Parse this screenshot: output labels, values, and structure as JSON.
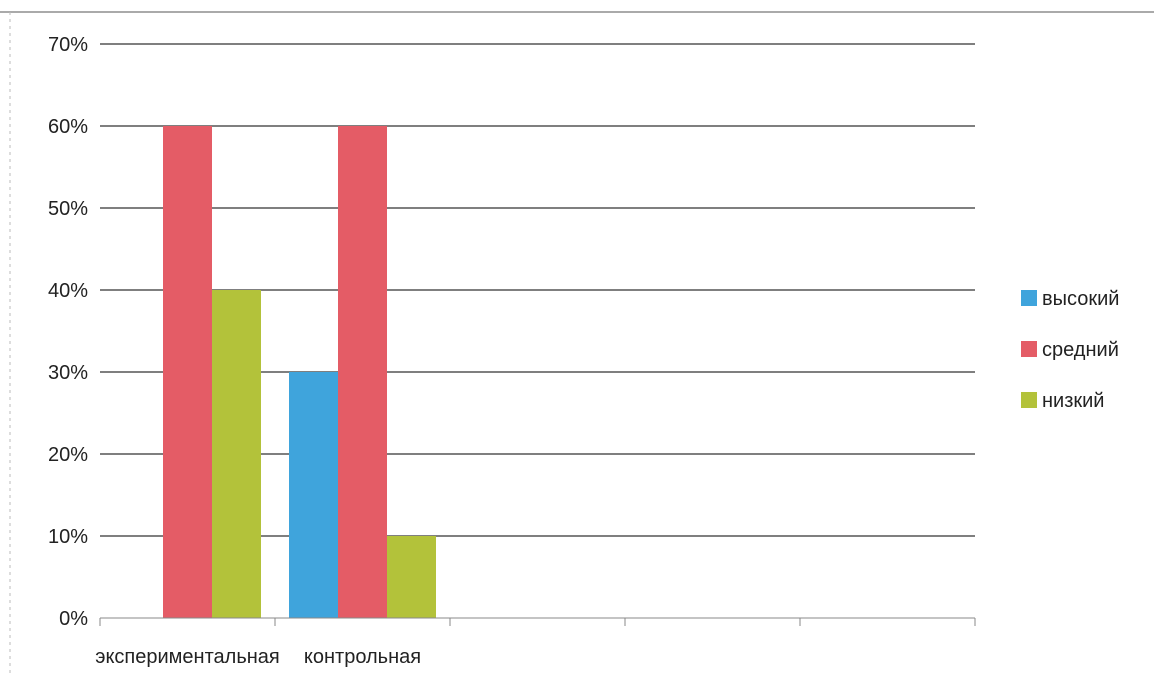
{
  "chart_data": {
    "type": "bar",
    "categories": [
      "экспериментальная",
      "контрольная",
      "",
      "",
      ""
    ],
    "series": [
      {
        "name": "высокий",
        "values": [
          0,
          30,
          null,
          null,
          null
        ],
        "color": "#3fa4dc"
      },
      {
        "name": "средний",
        "values": [
          60,
          60,
          null,
          null,
          null
        ],
        "color": "#e45c66"
      },
      {
        "name": "низкий",
        "values": [
          40,
          10,
          null,
          null,
          null
        ],
        "color": "#b3c23a"
      }
    ],
    "ylim": [
      0,
      70
    ],
    "yticks": [
      0,
      10,
      20,
      30,
      40,
      50,
      60,
      70
    ],
    "ytick_labels": [
      "0%",
      "10%",
      "20%",
      "30%",
      "40%",
      "50%",
      "60%",
      "70%"
    ],
    "grid": true,
    "legend_position": "right",
    "title": "",
    "xlabel": "",
    "ylabel": ""
  }
}
